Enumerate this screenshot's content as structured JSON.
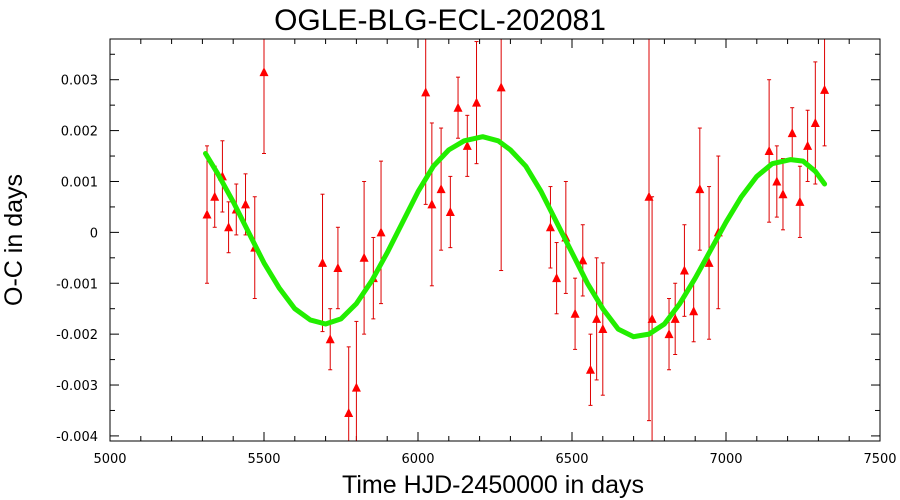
{
  "chart_data": {
    "type": "scatter",
    "title": "OGLE-BLG-ECL-202081",
    "xlabel": "Time HJD-2450000 in days",
    "ylabel": "O-C in days",
    "xlim": [
      5000,
      7500
    ],
    "ylim": [
      -0.0041,
      0.0038
    ],
    "x_ticks": [
      5000,
      5500,
      6000,
      6500,
      7000,
      7500
    ],
    "x_tick_labels": [
      "5000",
      "5500",
      "6000",
      "6500",
      "7000",
      "7500"
    ],
    "y_ticks": [
      -0.004,
      -0.003,
      -0.002,
      -0.001,
      0,
      0.001,
      0.002,
      0.003
    ],
    "y_tick_labels": [
      "-0.004",
      "-0.003",
      "-0.002",
      "-0.001",
      "0",
      "0.001",
      "0.002",
      "0.003"
    ],
    "grid": false,
    "series": [
      {
        "marker": "triangle",
        "color": "#ff0000",
        "points": [
          {
            "x": 5315,
            "y": 0.00035,
            "err": 0.00135
          },
          {
            "x": 5340,
            "y": 0.0007,
            "err": 0.0006
          },
          {
            "x": 5365,
            "y": 0.0011,
            "err": 0.0007
          },
          {
            "x": 5385,
            "y": 0.0001,
            "err": 0.0005
          },
          {
            "x": 5410,
            "y": 0.00045,
            "err": 0.0005
          },
          {
            "x": 5440,
            "y": 0.00055,
            "err": 0.0006
          },
          {
            "x": 5470,
            "y": -0.0003,
            "err": 0.001
          },
          {
            "x": 5500,
            "y": 0.00315,
            "err": 0.0016
          },
          {
            "x": 5690,
            "y": -0.0006,
            "err": 0.00135
          },
          {
            "x": 5715,
            "y": -0.0021,
            "err": 0.0006
          },
          {
            "x": 5740,
            "y": -0.0007,
            "err": 0.0008
          },
          {
            "x": 5775,
            "y": -0.00355,
            "err": 0.0013
          },
          {
            "x": 5800,
            "y": -0.00305,
            "err": 0.0013
          },
          {
            "x": 5825,
            "y": -0.0005,
            "err": 0.0015
          },
          {
            "x": 5855,
            "y": -0.0009,
            "err": 0.0008
          },
          {
            "x": 5880,
            "y": 0.0,
            "err": 0.0014
          },
          {
            "x": 6025,
            "y": 0.00275,
            "err": 0.0022
          },
          {
            "x": 6045,
            "y": 0.00055,
            "err": 0.0016
          },
          {
            "x": 6075,
            "y": 0.00085,
            "err": 0.0012
          },
          {
            "x": 6105,
            "y": 0.0004,
            "err": 0.0007
          },
          {
            "x": 6130,
            "y": 0.00245,
            "err": 0.0006
          },
          {
            "x": 6160,
            "y": 0.0017,
            "err": 0.0006
          },
          {
            "x": 6190,
            "y": 0.00255,
            "err": 0.0012
          },
          {
            "x": 6270,
            "y": 0.00285,
            "err": 0.0036
          },
          {
            "x": 6430,
            "y": 0.0001,
            "err": 0.0008
          },
          {
            "x": 6450,
            "y": -0.0009,
            "err": 0.0007
          },
          {
            "x": 6480,
            "y": -0.0001,
            "err": 0.0011
          },
          {
            "x": 6510,
            "y": -0.0016,
            "err": 0.0007
          },
          {
            "x": 6535,
            "y": -0.00055,
            "err": 0.0007
          },
          {
            "x": 6560,
            "y": -0.0027,
            "err": 0.0007
          },
          {
            "x": 6580,
            "y": -0.0017,
            "err": 0.0012
          },
          {
            "x": 6600,
            "y": -0.0019,
            "err": 0.0013
          },
          {
            "x": 6750,
            "y": 0.0007,
            "err": 0.0044
          },
          {
            "x": 6760,
            "y": -0.0017,
            "err": 0.0024
          },
          {
            "x": 6815,
            "y": -0.002,
            "err": 0.0007
          },
          {
            "x": 6835,
            "y": -0.0017,
            "err": 0.0007
          },
          {
            "x": 6865,
            "y": -0.00075,
            "err": 0.0009
          },
          {
            "x": 6895,
            "y": -0.00155,
            "err": 0.0006
          },
          {
            "x": 6915,
            "y": 0.00085,
            "err": 0.0012
          },
          {
            "x": 6945,
            "y": -0.0006,
            "err": 0.0015
          },
          {
            "x": 6975,
            "y": 0.0,
            "err": 0.0015
          },
          {
            "x": 7140,
            "y": 0.0016,
            "err": 0.0014
          },
          {
            "x": 7165,
            "y": 0.001,
            "err": 0.0007
          },
          {
            "x": 7185,
            "y": 0.00075,
            "err": 0.0007
          },
          {
            "x": 7215,
            "y": 0.00195,
            "err": 0.0005
          },
          {
            "x": 7240,
            "y": 0.0006,
            "err": 0.0007
          },
          {
            "x": 7265,
            "y": 0.0017,
            "err": 0.0007
          },
          {
            "x": 7290,
            "y": 0.00215,
            "err": 0.0012
          },
          {
            "x": 7320,
            "y": 0.0028,
            "err": 0.0011
          }
        ]
      },
      {
        "type": "line",
        "color": "#22ee00",
        "points": [
          {
            "x": 5310,
            "y": 0.00155
          },
          {
            "x": 5350,
            "y": 0.00115
          },
          {
            "x": 5400,
            "y": 0.0006
          },
          {
            "x": 5450,
            "y": 0.0
          },
          {
            "x": 5500,
            "y": -0.0006
          },
          {
            "x": 5550,
            "y": -0.0011
          },
          {
            "x": 5600,
            "y": -0.0015
          },
          {
            "x": 5650,
            "y": -0.00172
          },
          {
            "x": 5700,
            "y": -0.0018
          },
          {
            "x": 5750,
            "y": -0.0017
          },
          {
            "x": 5800,
            "y": -0.0014
          },
          {
            "x": 5850,
            "y": -0.00095
          },
          {
            "x": 5900,
            "y": -0.0004
          },
          {
            "x": 5950,
            "y": 0.0002
          },
          {
            "x": 6000,
            "y": 0.0008
          },
          {
            "x": 6050,
            "y": 0.0013
          },
          {
            "x": 6100,
            "y": 0.00162
          },
          {
            "x": 6150,
            "y": 0.0018
          },
          {
            "x": 6210,
            "y": 0.00188
          },
          {
            "x": 6260,
            "y": 0.0018
          },
          {
            "x": 6300,
            "y": 0.00162
          },
          {
            "x": 6350,
            "y": 0.0013
          },
          {
            "x": 6400,
            "y": 0.0008
          },
          {
            "x": 6450,
            "y": 0.0002
          },
          {
            "x": 6500,
            "y": -0.0004
          },
          {
            "x": 6550,
            "y": -0.001
          },
          {
            "x": 6600,
            "y": -0.0015
          },
          {
            "x": 6650,
            "y": -0.0019
          },
          {
            "x": 6700,
            "y": -0.00205
          },
          {
            "x": 6750,
            "y": -0.002
          },
          {
            "x": 6800,
            "y": -0.0018
          },
          {
            "x": 6850,
            "y": -0.0014
          },
          {
            "x": 6900,
            "y": -0.0009
          },
          {
            "x": 6950,
            "y": -0.00035
          },
          {
            "x": 7000,
            "y": 0.0002
          },
          {
            "x": 7050,
            "y": 0.0007
          },
          {
            "x": 7100,
            "y": 0.0011
          },
          {
            "x": 7150,
            "y": 0.00135
          },
          {
            "x": 7210,
            "y": 0.00143
          },
          {
            "x": 7250,
            "y": 0.0014
          },
          {
            "x": 7290,
            "y": 0.0012
          },
          {
            "x": 7320,
            "y": 0.00095
          }
        ]
      }
    ]
  }
}
